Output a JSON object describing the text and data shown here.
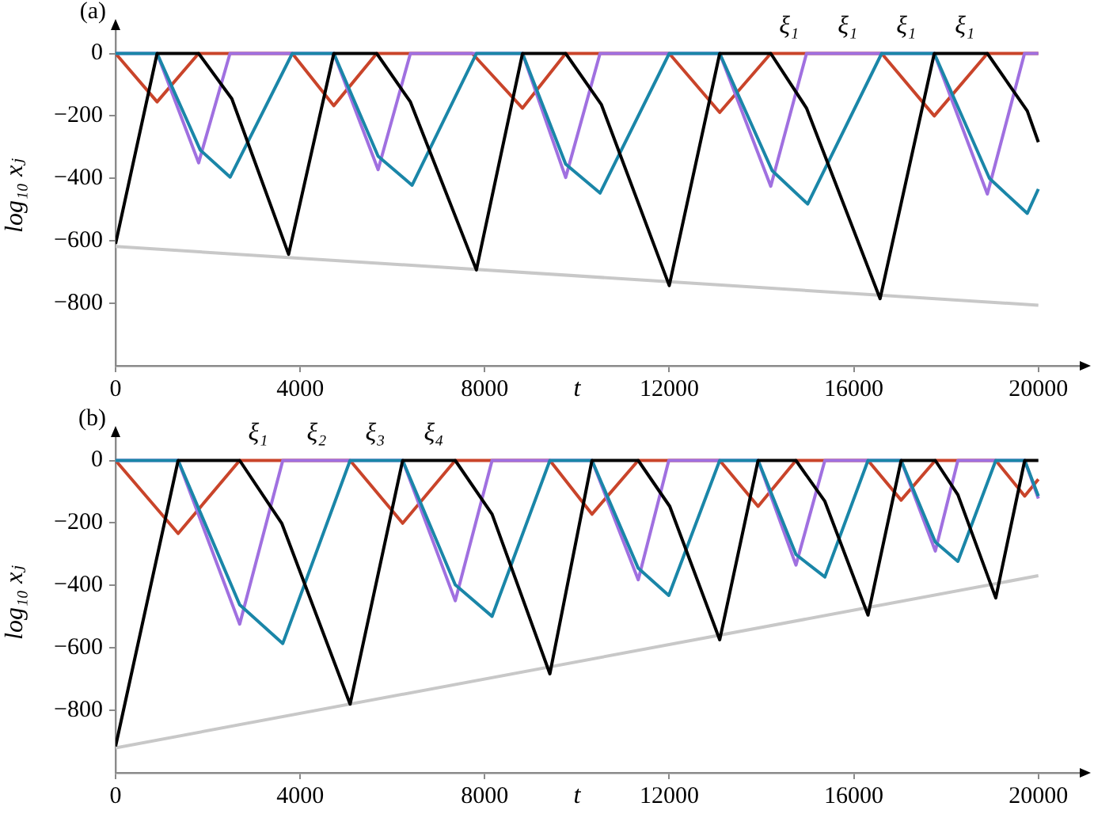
{
  "chart_data": [
    {
      "type": "line",
      "title": "(a)",
      "xlabel": "t",
      "ylabel": "log₁₀ xⱼ",
      "xlim": [
        0,
        21000
      ],
      "ylim": [
        -1000,
        90
      ],
      "xticks": [
        0,
        4000,
        8000,
        12000,
        16000,
        20000
      ],
      "yticks": [
        {
          "value": -800,
          "label": "−800"
        },
        {
          "value": -600,
          "label": "−600"
        },
        {
          "value": -400,
          "label": "−400"
        },
        {
          "value": -200,
          "label": "−200"
        },
        0
      ],
      "grid": false,
      "legend": false,
      "marker": "none",
      "line_style": "solid",
      "annotations": [
        "ξ₁",
        "ξ₁",
        "ξ₁",
        "ξ₁"
      ],
      "series": [
        {
          "color": "#c8c8c8",
          "x": [
            0,
            20000
          ],
          "values": [
            -618,
            -806
          ]
        },
        {
          "color": "#c9442a",
          "x": [
            0,
            900,
            1800,
            3830,
            4730,
            5660,
            7730,
            8820,
            9755,
            12000,
            13094,
            14200,
            16604,
            17744,
            18895,
            20000
          ],
          "values": [
            0,
            -155,
            0,
            0,
            -167,
            0,
            0,
            -175,
            0,
            0,
            -189,
            0,
            0,
            -200,
            0,
            0
          ]
        },
        {
          "color": "#a070e0",
          "x": [
            0,
            900,
            1800,
            2480,
            4730,
            5690,
            6390,
            8820,
            9755,
            10500,
            13094,
            14200,
            14975,
            17744,
            18895,
            19700,
            20000
          ],
          "values": [
            0,
            0,
            -350,
            0,
            0,
            -372,
            0,
            0,
            -397,
            0,
            0,
            -425,
            0,
            0,
            -450,
            0,
            0
          ]
        },
        {
          "color": "#1a86a8",
          "x": [
            0,
            900,
            1835,
            2484,
            3830,
            4730,
            5690,
            6427,
            7820,
            8820,
            9755,
            10500,
            12000,
            13094,
            14230,
            15000,
            16604,
            17744,
            18940,
            19760,
            20000
          ],
          "values": [
            0,
            0,
            -309,
            -396,
            0,
            0,
            -329,
            -422,
            0,
            0,
            -354,
            -447,
            0,
            0,
            -375,
            -482,
            0,
            0,
            -400,
            -512,
            -434
          ]
        },
        {
          "color": "#000000",
          "x": [
            0,
            900,
            1800,
            2520,
            3750,
            4730,
            5660,
            6390,
            7820,
            8820,
            9755,
            10530,
            12000,
            13094,
            14200,
            14975,
            16570,
            17744,
            18895,
            19760,
            20000
          ],
          "values": [
            -609,
            0,
            0,
            -145,
            -643,
            0,
            0,
            -155,
            -693,
            0,
            0,
            -164,
            -743,
            0,
            0,
            -175,
            -785,
            0,
            0,
            -184,
            -284
          ]
        }
      ]
    },
    {
      "type": "line",
      "title": "(b)",
      "xlabel": "t",
      "ylabel": "log₁₀ xⱼ",
      "xlim": [
        0,
        21000
      ],
      "ylim": [
        -1000,
        90
      ],
      "xticks": [
        0,
        4000,
        8000,
        12000,
        16000,
        20000
      ],
      "yticks": [
        {
          "value": -800,
          "label": "−800"
        },
        {
          "value": -600,
          "label": "−600"
        },
        {
          "value": -400,
          "label": "−400"
        },
        {
          "value": -200,
          "label": "−200"
        },
        0
      ],
      "grid": false,
      "legend": false,
      "marker": "none",
      "line_style": "solid",
      "annotations": [
        "ξ₁",
        "ξ₂",
        "ξ₃",
        "ξ₄"
      ],
      "series": [
        {
          "color": "#c8c8c8",
          "x": [
            0,
            20000
          ],
          "values": [
            -920,
            -369
          ]
        },
        {
          "color": "#c9442a",
          "x": [
            0,
            1356,
            2690,
            5083,
            6222,
            7362,
            9413,
            10325,
            11328,
            13094,
            13926,
            14746,
            16308,
            17026,
            17766,
            19077,
            19704,
            20000
          ],
          "values": [
            0,
            -234,
            0,
            0,
            -201,
            0,
            0,
            -172,
            0,
            0,
            -147,
            0,
            0,
            -127,
            0,
            0,
            -114,
            -60
          ]
        },
        {
          "color": "#a070e0",
          "x": [
            0,
            1356,
            2690,
            3624,
            6222,
            7362,
            8160,
            10325,
            11328,
            11990,
            13926,
            14746,
            15373,
            17026,
            17766,
            18256,
            19704,
            20000
          ],
          "values": [
            0,
            0,
            -524,
            0,
            0,
            -449,
            0,
            0,
            -382,
            0,
            0,
            -335,
            0,
            0,
            -290,
            0,
            0,
            -122
          ]
        },
        {
          "color": "#1a86a8",
          "x": [
            0,
            1356,
            2690,
            3624,
            5083,
            6222,
            7362,
            8160,
            9413,
            10325,
            11328,
            11990,
            13094,
            13926,
            14746,
            15373,
            16308,
            17026,
            17766,
            18256,
            19077,
            19704,
            20000
          ],
          "values": [
            0,
            0,
            -462,
            -586,
            0,
            0,
            -398,
            -499,
            0,
            0,
            -345,
            -432,
            0,
            0,
            -301,
            -373,
            0,
            0,
            -261,
            -323,
            0,
            0,
            -114
          ]
        },
        {
          "color": "#000000",
          "x": [
            0,
            1356,
            2690,
            3601,
            5083,
            6222,
            7362,
            8160,
            9413,
            10325,
            11328,
            12011,
            13094,
            13926,
            14746,
            15373,
            16308,
            17026,
            17766,
            18256,
            19077,
            19704,
            20000
          ],
          "values": [
            -915,
            0,
            0,
            -201,
            -780,
            0,
            0,
            -172,
            -683,
            0,
            0,
            -147,
            -574,
            0,
            0,
            -131,
            -495,
            0,
            0,
            -110,
            -440,
            0,
            0
          ]
        }
      ]
    }
  ]
}
